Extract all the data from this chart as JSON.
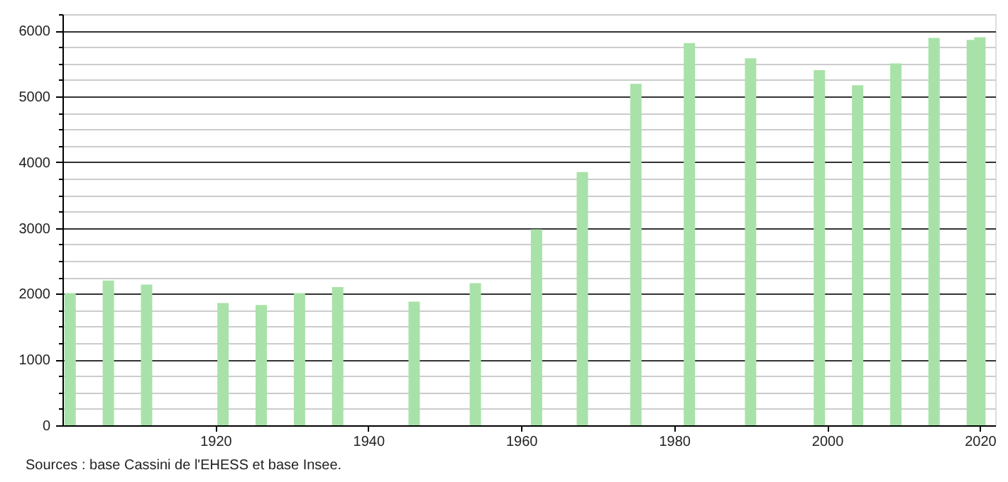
{
  "chart_data": {
    "type": "bar",
    "x": [
      1901,
      1906,
      1911,
      1921,
      1926,
      1931,
      1936,
      1946,
      1954,
      1962,
      1968,
      1975,
      1982,
      1990,
      1999,
      2004,
      2009,
      2014,
      2019,
      2020
    ],
    "values": [
      2010,
      2200,
      2140,
      1860,
      1830,
      2010,
      2100,
      1880,
      2160,
      2980,
      3850,
      5190,
      5810,
      5580,
      5400,
      5170,
      5500,
      5890,
      5860,
      5900
    ],
    "color": "#a8e2a8",
    "xlim": [
      1900,
      2022
    ],
    "xticks": [
      1920,
      1940,
      1960,
      1980,
      2000,
      2020
    ],
    "ylim": [
      0,
      6250
    ],
    "yticks": [
      0,
      {
        "value": 250,
        "label": null
      },
      {
        "value": 500,
        "label": null
      },
      {
        "value": 750,
        "label": null
      },
      1000,
      {
        "value": 1250,
        "label": null
      },
      {
        "value": 1500,
        "label": null
      },
      {
        "value": 1750,
        "label": null
      },
      2000,
      {
        "value": 2250,
        "label": null
      },
      {
        "value": 2500,
        "label": null
      },
      {
        "value": 2750,
        "label": null
      },
      3000,
      {
        "value": 3250,
        "label": null
      },
      {
        "value": 3500,
        "label": null
      },
      {
        "value": 3750,
        "label": null
      },
      4000,
      {
        "value": 4250,
        "label": null
      },
      {
        "value": 4500,
        "label": null
      },
      {
        "value": 4750,
        "label": null
      },
      5000,
      {
        "value": 5250,
        "label": null
      },
      {
        "value": 5500,
        "label": null
      },
      {
        "value": 5750,
        "label": null
      },
      6000,
      {
        "value": 6250,
        "label": null
      }
    ],
    "grid": "y",
    "annotations": [
      "Sources : base Cassini de l'EHESS et base Insee."
    ]
  }
}
